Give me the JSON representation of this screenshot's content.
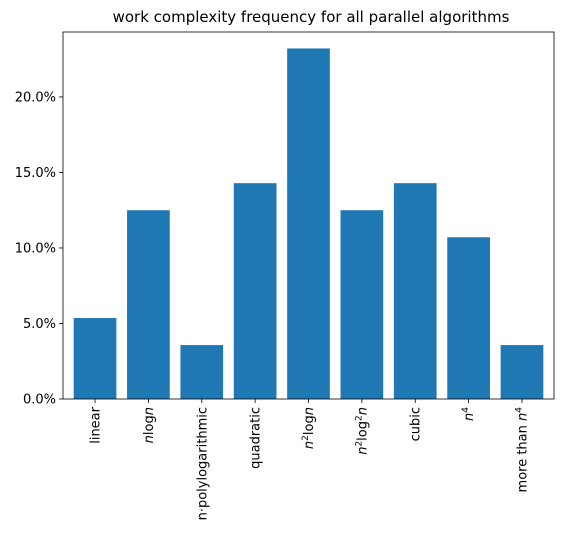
{
  "chart_data": {
    "type": "bar",
    "title": "work complexity frequency for all parallel algorithms",
    "xlabel": "",
    "ylabel": "",
    "categories": [
      {
        "text": "linear"
      },
      {
        "text": "",
        "parts": [
          {
            "t": "n",
            "i": true
          },
          {
            "t": "log"
          },
          {
            "t": "n",
            "i": true
          }
        ]
      },
      {
        "text": "n·polylogarithmic"
      },
      {
        "text": "quadratic"
      },
      {
        "text": "",
        "parts": [
          {
            "t": "n",
            "i": true
          },
          {
            "t": "2",
            "sup": true
          },
          {
            "t": "log"
          },
          {
            "t": "n",
            "i": true
          }
        ]
      },
      {
        "text": "",
        "parts": [
          {
            "t": "n",
            "i": true
          },
          {
            "t": "2",
            "sup": true
          },
          {
            "t": "log"
          },
          {
            "t": "2",
            "sup": true
          },
          {
            "t": "n",
            "i": true
          }
        ]
      },
      {
        "text": "cubic"
      },
      {
        "text": "",
        "parts": [
          {
            "t": "n",
            "i": true
          },
          {
            "t": "4",
            "sup": true
          }
        ]
      },
      {
        "text": "",
        "parts": [
          {
            "t": "more than "
          },
          {
            "t": "n",
            "i": true
          },
          {
            "t": "4",
            "sup": true
          }
        ]
      }
    ],
    "values": [
      5.36,
      12.5,
      3.57,
      14.29,
      23.21,
      12.5,
      14.29,
      10.71,
      3.57
    ],
    "value_unit": "percent",
    "ylim": [
      0,
      24.3
    ],
    "yticks": [
      {
        "value": 0,
        "label": "0.0%"
      },
      {
        "value": 5,
        "label": "5.0%"
      },
      {
        "value": 10,
        "label": "10.0%"
      },
      {
        "value": 15,
        "label": "15.0%"
      },
      {
        "value": 20,
        "label": "20.0%"
      }
    ],
    "bar_color": "#1f77b4",
    "grid": false,
    "legend": "none"
  }
}
